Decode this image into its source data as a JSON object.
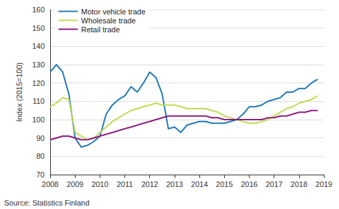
{
  "chart_data": {
    "type": "line",
    "y_label": "Index (2015=100)",
    "annotations": [
      "Source: Statistics Finland"
    ],
    "x": [
      2008,
      2008.25,
      2008.5,
      2008.75,
      2009,
      2009.25,
      2009.5,
      2009.75,
      2010,
      2010.25,
      2010.5,
      2010.75,
      2011,
      2011.25,
      2011.5,
      2011.75,
      2012,
      2012.25,
      2012.5,
      2012.75,
      2013,
      2013.25,
      2013.5,
      2013.75,
      2014,
      2014.25,
      2014.5,
      2014.75,
      2015,
      2015.25,
      2015.5,
      2015.75,
      2016,
      2016.25,
      2016.5,
      2016.75,
      2017,
      2017.25,
      2017.5,
      2017.75,
      2018,
      2018.25,
      2018.5,
      2018.75
    ],
    "series": [
      {
        "name": "Motor vehicle trade",
        "color": "#1f78b4",
        "values": [
          126,
          130,
          126,
          114,
          90,
          85,
          86,
          88,
          91,
          103,
          108,
          111,
          113,
          118,
          115,
          120,
          126,
          123,
          114,
          95,
          96,
          93,
          97,
          98,
          99,
          99,
          98,
          98,
          98,
          99,
          100,
          103,
          107,
          107,
          108,
          110,
          111,
          112,
          115,
          115,
          117,
          117,
          120,
          122
        ]
      },
      {
        "name": "Wholesale trade",
        "color": "#bcdc4e",
        "values": [
          107,
          109,
          112,
          111,
          93,
          91,
          89,
          90,
          93,
          96,
          99,
          101,
          103,
          105,
          106,
          107,
          108,
          109,
          108,
          108,
          108,
          107,
          106,
          106,
          106,
          106,
          105,
          104,
          102,
          101,
          100,
          99,
          98,
          98,
          99,
          100,
          102,
          104,
          106,
          107,
          109,
          110,
          111,
          113
        ]
      },
      {
        "name": "Retail trade",
        "color": "#8e1a80",
        "values": [
          89,
          90,
          91,
          91,
          90,
          89,
          89,
          90,
          91,
          92,
          93,
          94,
          95,
          96,
          97,
          98,
          99,
          100,
          101,
          102,
          102,
          102,
          102,
          102,
          102,
          102,
          101,
          101,
          100,
          100,
          100,
          100,
          100,
          100,
          100,
          101,
          101,
          102,
          102,
          103,
          104,
          104,
          105,
          105
        ]
      }
    ],
    "xlim": [
      2008,
      2019
    ],
    "xticks": [
      2008,
      2009,
      2010,
      2011,
      2012,
      2013,
      2014,
      2015,
      2016,
      2017,
      2018,
      2019
    ],
    "ylim": [
      70,
      160
    ],
    "yticks": [
      70,
      80,
      90,
      100,
      110,
      120,
      130,
      140,
      150,
      160
    ],
    "grid": true,
    "legend": "upper left"
  }
}
